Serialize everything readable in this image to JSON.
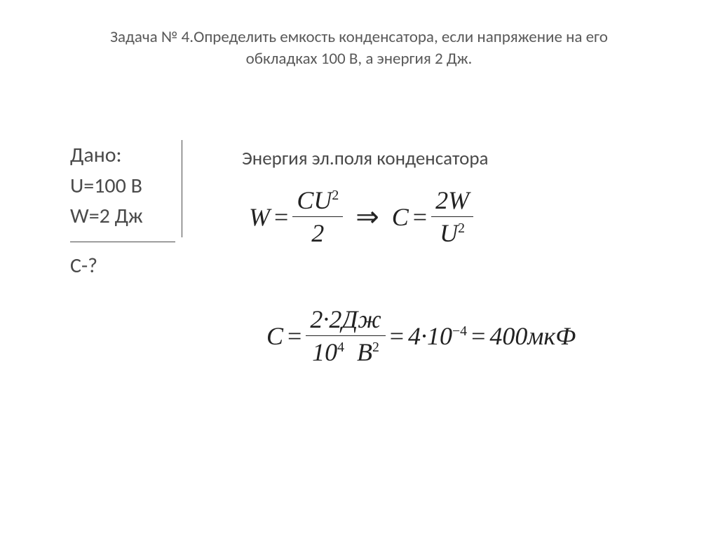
{
  "title": {
    "line1": "Задача № 4.Определить емкость конденсатора, если напряжение на его",
    "line2": "обкладках 100 В, а энергия 2 Дж."
  },
  "given": {
    "heading": "Дано:",
    "u_label": "U=100 В",
    "w_label": "W=2 Дж",
    "find": "C-?"
  },
  "solution": {
    "heading": "Энергия эл.поля конденсатора",
    "formula1": {
      "lhs": "W",
      "num": "CU",
      "num_sup": "2",
      "den": "2",
      "implies_rhs_lhs": "C",
      "rhs_num": "2W",
      "rhs_den_base": "U",
      "rhs_den_sup": "2"
    },
    "formula2": {
      "lhs": "C",
      "num_left": "2·2",
      "num_unit": "Дж",
      "den_base": "10",
      "den_exp": "4",
      "den_unit_base": "В",
      "den_unit_sup": "2",
      "mid_val_base": "4·10",
      "mid_val_exp": "−4",
      "result_val": "400",
      "result_unit": "мкФ"
    }
  },
  "style": {
    "page_bg": "#ffffff",
    "title_color": "#595959",
    "text_color": "#4a4a4a",
    "formula_color": "#222222",
    "title_fontsize": 23,
    "given_fontsize": 30,
    "solution_label_fontsize": 27,
    "formula_fontsize": 36
  }
}
